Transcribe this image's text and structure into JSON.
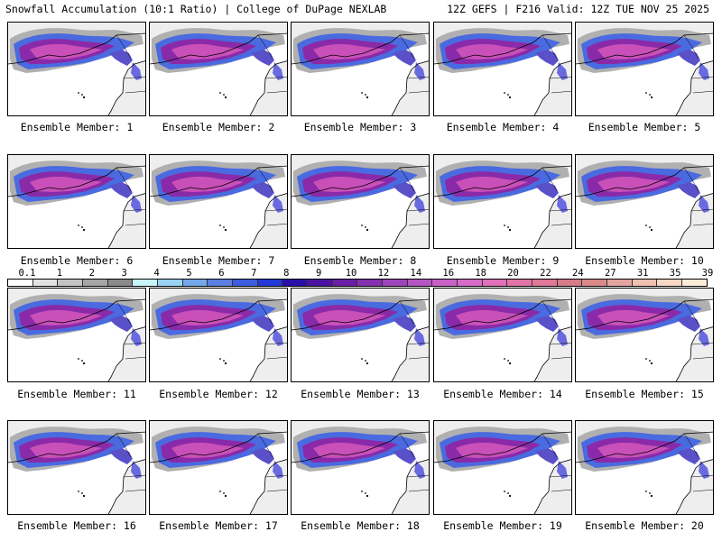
{
  "header": {
    "left": "Snowfall Accumulation (10:1 Ratio) | College of DuPage NEXLAB",
    "right": "12Z GEFS | F216 Valid: 12Z TUE NOV 25 2025"
  },
  "members": [
    "Ensemble Member: 1",
    "Ensemble Member: 2",
    "Ensemble Member: 3",
    "Ensemble Member: 4",
    "Ensemble Member: 5",
    "Ensemble Member: 6",
    "Ensemble Member: 7",
    "Ensemble Member: 8",
    "Ensemble Member: 9",
    "Ensemble Member: 10",
    "Ensemble Member: 11",
    "Ensemble Member: 12",
    "Ensemble Member: 13",
    "Ensemble Member: 14",
    "Ensemble Member: 15",
    "Ensemble Member: 16",
    "Ensemble Member: 17",
    "Ensemble Member: 18",
    "Ensemble Member: 19",
    "Ensemble Member: 20"
  ],
  "colorbar": {
    "labels": [
      "0.1",
      "1",
      "2",
      "3",
      "4",
      "5",
      "6",
      "7",
      "8",
      "9",
      "10",
      "12",
      "14",
      "16",
      "18",
      "20",
      "22",
      "24",
      "27",
      "31",
      "35",
      "39"
    ],
    "colors": [
      "#ffffff",
      "#e2e2e2",
      "#c4c4c4",
      "#a6a6a6",
      "#8a8a8a",
      "#c8f4f8",
      "#9ad4f4",
      "#74a8ec",
      "#5a80e4",
      "#3e5ce0",
      "#2238d8",
      "#2810a8",
      "#4a12a0",
      "#6a1ea8",
      "#8430b0",
      "#9e44bc",
      "#b654c4",
      "#c860c8",
      "#d86ac8",
      "#e070b8",
      "#e474a8",
      "#e07898",
      "#d87c88",
      "#d88a88",
      "#e4a4a0",
      "#f0c0b0",
      "#f8d8c4",
      "#fcecd8"
    ]
  },
  "colors": {
    "ocean": "#ffffff",
    "land": "#eeeeee",
    "snow_light": "#9a9a9a",
    "snow_blue": "#3a58dc",
    "snow_purple": "#8a2aa8",
    "snow_magenta": "#c850b8",
    "border": "#000000"
  }
}
